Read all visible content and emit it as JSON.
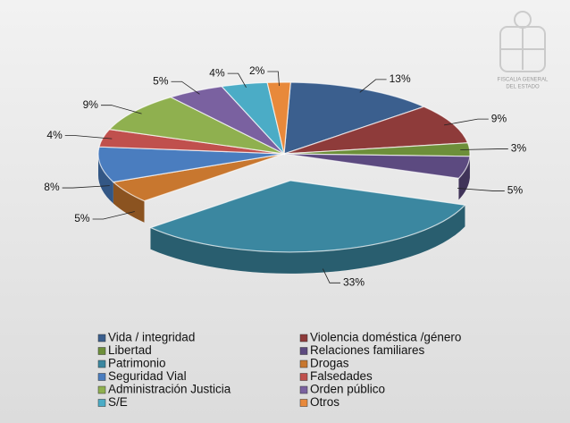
{
  "chart_data": {
    "type": "pie",
    "categories": [
      "Vida / integridad",
      "Violencia doméstica /género",
      "Libertad",
      "Relaciones familiares",
      "Patrimonio",
      "Drogas",
      "Seguridad Vial",
      "Falsedades",
      "Administración Justicia",
      "Orden público",
      "S/E",
      "Otros"
    ],
    "values": [
      13,
      9,
      3,
      5,
      33,
      5,
      8,
      4,
      9,
      5,
      4,
      2
    ],
    "value_labels": [
      "13%",
      "9%",
      "3%",
      "5%",
      "33%",
      "5%",
      "8%",
      "4%",
      "9%",
      "5%",
      "4%",
      "2%"
    ],
    "colors": [
      "#3b5f8e",
      "#8e3b3a",
      "#6d8f3a",
      "#5c4a80",
      "#3b87a0",
      "#c8772f",
      "#4a7dbf",
      "#c0504d",
      "#8fb04f",
      "#7a61a0",
      "#4bacc6",
      "#e8893b"
    ],
    "legend": "bottom",
    "logo_text": [
      "FISCALIA GENERAL",
      "DEL ESTADO"
    ]
  }
}
